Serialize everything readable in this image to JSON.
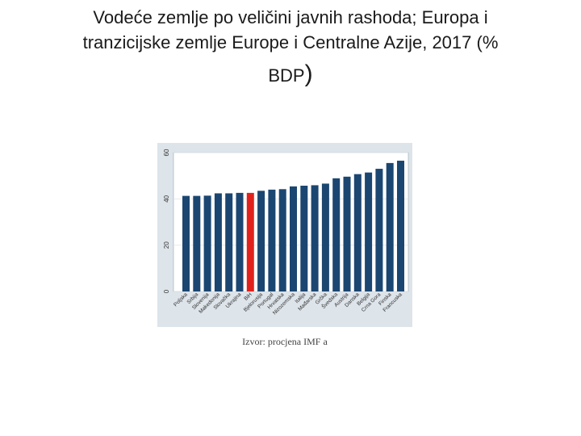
{
  "title": {
    "line1": "Vodeće zemlje po veličini javnih rashoda; Europa i",
    "line2": "tranzicijske zemlje Europe i Centralne Azije, 2017 (%",
    "line3": "BDP",
    "line3_paren": ")"
  },
  "chart_data": {
    "type": "bar",
    "categories": [
      "Poljska",
      "Srbija",
      "Slovenija",
      "Makedonija",
      "Slovačka",
      "Ukrajina",
      "BiH",
      "Bjelorusija",
      "Portugal",
      "Hrvatska",
      "Nizozemska",
      "Italija",
      "Mađarska",
      "Grčka",
      "Švedska",
      "Austrija",
      "Danska",
      "Belgija",
      "Crna Gora",
      "Finska",
      "Francuska"
    ],
    "tick_labels_shown": [
      "Poljska",
      "Srbija",
      "Slovenija",
      "Makedonija",
      "Slovačka",
      "Ukrajina",
      "BiH",
      "Bjelorusija",
      "Portugal",
      "Hrvatska",
      "Nizozemska",
      "Italija",
      "Mađarska",
      "Grčka",
      "Švedska",
      "Austrija",
      "Danska",
      "Belgija",
      "Crna Gora",
      "Finska",
      "Francuska"
    ],
    "values": [
      41.3,
      41.3,
      41.4,
      42.4,
      42.4,
      42.6,
      42.6,
      43.5,
      44.0,
      44.2,
      45.4,
      45.7,
      45.9,
      46.6,
      48.9,
      49.6,
      50.7,
      51.4,
      53.0,
      55.5,
      56.5
    ],
    "highlight_index": 6,
    "highlight_color": "#e1221c",
    "bar_color": "#1b4671",
    "yticks": [
      "0",
      "20",
      "40",
      "60"
    ],
    "ylim": [
      0,
      60
    ],
    "grid": true,
    "title": "",
    "xlabel": "",
    "ylabel": ""
  },
  "source": "Izvor: procjena IMF a"
}
